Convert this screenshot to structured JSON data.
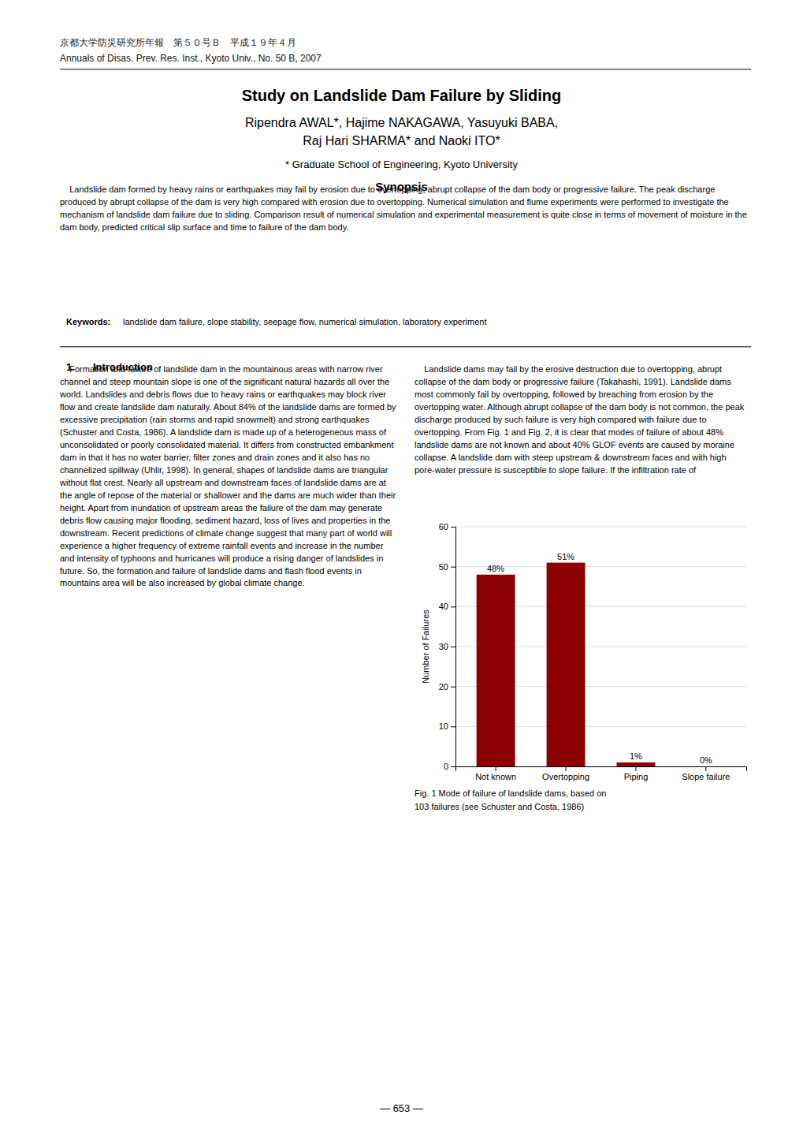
{
  "page": {
    "japanese_header": "京都大学防災研究所年報　第５０号Ｂ　平成１９年４月",
    "english_header": "Annuals of Disas. Prev. Res. Inst., Kyoto Univ., No. 50 B, 2007",
    "title": "Study on Landslide Dam Failure by Sliding",
    "authors": [
      "Ripendra AWAL*, Hajime NAKAGAWA, Yasuyuki BABA,",
      "Raj Hari SHARMA* and Naoki ITO*"
    ],
    "affiliation": "* Graduate School of Engineering, Kyoto University",
    "synopsis_title": "Synopsis",
    "synopsis_text": "    Landslide dam formed by heavy rains or earthquakes may fail by erosion due to overtopping, abrupt collapse of the dam body or progressive failure. The peak discharge produced by abrupt collapse of the dam is very high compared with erosion due to overtopping. Numerical simulation and flume experiments were performed to investigate the mechanism of landslide dam failure due to sliding. Comparison result of numerical simulation and experimental measurement is quite close in terms of movement of moisture in the dam body, predicted critical slip surface and time to failure of the dam body.",
    "keywords_label": "Keywords:",
    "keywords_text": " landslide dam failure, slope stability, seepage flow, numerical simulation, laboratory experiment",
    "section_number": "1.",
    "section_title": "Introduction",
    "left_column_text": "    Formation and failure of landslide dam in the mountainous areas with narrow river channel and steep mountain slope is one of the significant natural hazards all over the world. Landslides and debris flows due to heavy rains or earthquakes may block river flow and create landslide dam naturally. About 84% of the landslide dams are formed by excessive precipitation (rain storms and rapid snowmelt) and strong earthquakes (Schuster and Costa, 1986). A landslide dam is made up of a heterogeneous mass of unconsolidated or poorly consolidated material. It differs from constructed embankment dam in that it has no water barrier, filter zones and drain zones and it also has no channelized spillway (Uhlir, 1998). In general, shapes of landslide dams are triangular without flat crest. Nearly all upstream and downstream faces of landslide dams are at the angle of repose of the material or shallower and the dams are much wider than their height. Apart from inundation of upstream areas the failure of the dam may generate debris flow causing major flooding, sediment hazard, loss of lives and properties in the downstream. Recent predictions of climate change suggest that many part of world will experience a higher frequency of extreme rainfall events and increase in the number and intensity of typhoons and hurricanes will produce a rising danger of landslides in future. So, the formation and failure of landslide dams and flash flood events in mountains area will be also increased by global climate change.",
    "right_column_text": "    Landslide dams may fail by the erosive destruction due to overtopping, abrupt collapse of the dam body or progressive failure (Takahashi, 1991). Landslide dams most commonly fail by overtopping, followed by breaching from erosion by the overtopping water. Although abrupt collapse of the dam body is not common, the peak discharge produced by such failure is very high compared with failure due to overtopping. From Fig. 1 and Fig. 2, it is clear that modes of failure of about 48% landslide dams are not known and about 40% GLOF events are caused by moraine collapse. A landslide dam with steep upstream & downstream faces and with high pore-water pressure is susceptible to slope failure. If the infiltration rate of",
    "caption": [
      "Fig. 1 Mode of failure of landslide dams, based on",
      "103 failures (see Schuster and Costa, 1986)"
    ],
    "page_number": "― 653 ―"
  },
  "chart_data": {
    "type": "bar",
    "y_label": "Number of Failures",
    "categories": [
      "Not known",
      "Overtopping",
      "Piping",
      "Slope failure"
    ],
    "values": [
      48,
      51,
      1,
      0
    ],
    "value_labels": [
      "48%",
      "51%",
      "1%",
      "0%"
    ],
    "data_labels": true,
    "color": "#8B0000",
    "ylim": [
      0,
      60
    ],
    "yticks": [
      0,
      10,
      20,
      30,
      40,
      50,
      60
    ],
    "grid": true
  }
}
